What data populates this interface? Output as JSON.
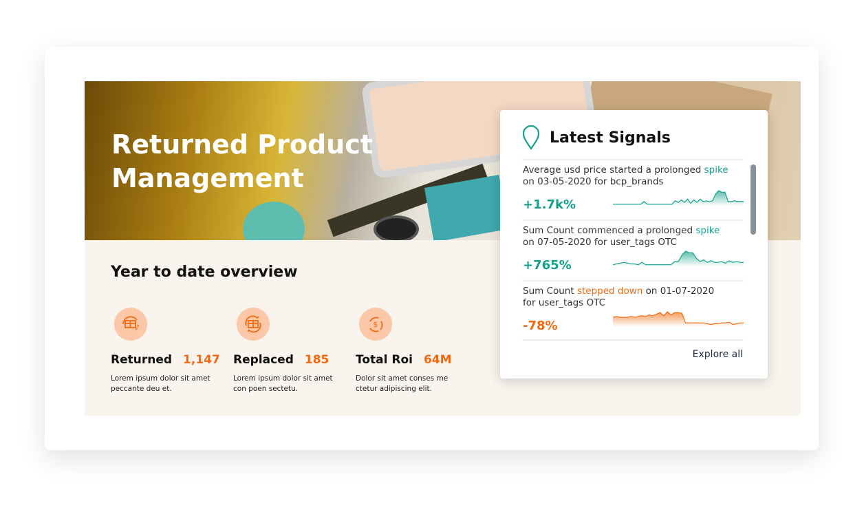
{
  "hero": {
    "title_line1": "Returned Product",
    "title_line2": "Management"
  },
  "overview": {
    "title": "Year to date overview",
    "stats": [
      {
        "icon": "box-return-icon",
        "label": "Returned",
        "value": "1,147",
        "desc1": "Lorem ipsum dolor sit amet",
        "desc2": "peccante deu et."
      },
      {
        "icon": "box-replace-icon",
        "label": "Replaced",
        "value": "185",
        "desc1": "Lorem ipsum dolor sit amet",
        "desc2": "con poen sectetu."
      },
      {
        "icon": "dollar-cycle-icon",
        "label": "Total Roi",
        "value": "64M",
        "desc1": "Dolor sit amet conses me",
        "desc2": "ctetur adipiscing elit."
      }
    ]
  },
  "signals": {
    "title": "Latest Signals",
    "icon": "location-pin-icon",
    "explore": "Explore all",
    "items": [
      {
        "pre": "Average usd price started a prolonged ",
        "hl": "spike",
        "post": "",
        "line2": "on 03-05-2020 for bcp_brands",
        "value": "+1.7k%",
        "direction": "up",
        "spark": [
          2,
          2,
          2,
          2,
          2,
          2,
          2,
          2,
          2,
          2,
          5,
          2,
          2,
          2,
          2,
          2,
          2,
          2,
          2,
          2,
          6,
          4,
          7,
          4,
          8,
          3,
          7,
          4,
          8,
          5,
          6,
          5,
          6,
          14,
          18,
          16,
          16,
          5,
          5,
          6,
          5,
          5,
          5
        ]
      },
      {
        "pre": "Sum Count commenced a prolonged ",
        "hl": "spike",
        "post": "",
        "line2": "on 07-05-2020 for user_tags OTC",
        "value": "+765%",
        "direction": "up",
        "spark": [
          2,
          3,
          4,
          5,
          4,
          3,
          3,
          2,
          5,
          2,
          2,
          2,
          2,
          2,
          2,
          2,
          2,
          6,
          6,
          14,
          19,
          17,
          17,
          10,
          6,
          8,
          5,
          7,
          5,
          5,
          6,
          4,
          7,
          5,
          6,
          5,
          5
        ]
      },
      {
        "pre": "Sum Count ",
        "hl": "stepped down",
        "post": " on 01-07-2020",
        "line2": "for user_tags OTC",
        "value": "-78%",
        "direction": "down",
        "spark": [
          12,
          13,
          12,
          12,
          12,
          13,
          12,
          13,
          14,
          13,
          15,
          14,
          16,
          18,
          14,
          19,
          15,
          18,
          18,
          17,
          5,
          5,
          5,
          5,
          5,
          5,
          4,
          3,
          4,
          4,
          5,
          5,
          6,
          3,
          4,
          5,
          5
        ]
      }
    ]
  },
  "colors": {
    "up": "#14a08a",
    "down": "#f26a10",
    "accent": "#f26a10"
  }
}
